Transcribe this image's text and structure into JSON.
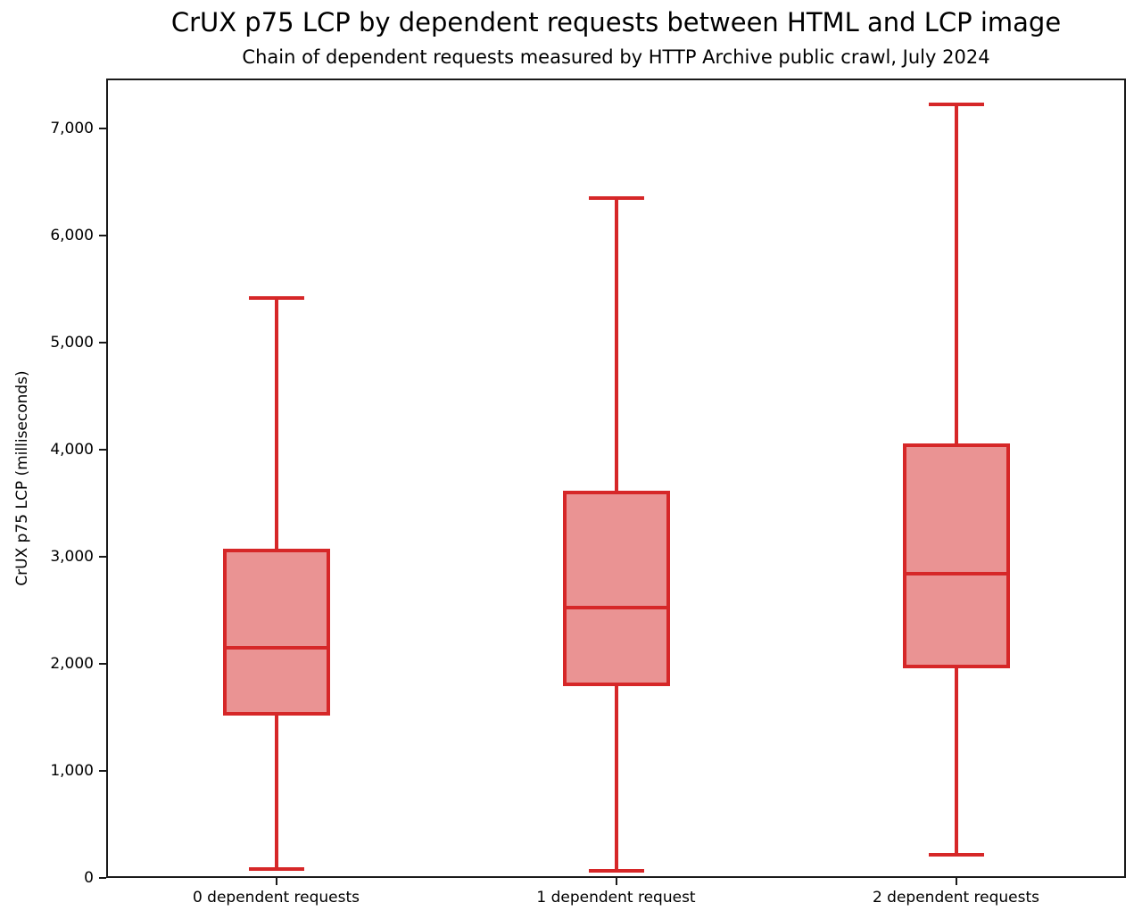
{
  "page": {
    "title": "CrUX p75 LCP by dependent requests between HTML and LCP image",
    "subtitle": "Chain of dependent requests measured by HTTP Archive public crawl, July 2024"
  },
  "chart_data": {
    "type": "boxplot",
    "title": "CrUX p75 LCP by dependent requests between HTML and LCP image",
    "subtitle": "Chain of dependent requests measured by HTTP Archive public crawl, July 2024",
    "xlabel": "",
    "ylabel": "CrUX p75 LCP (milliseconds)",
    "categories": [
      "0 dependent requests",
      "1 dependent request",
      "2 dependent requests"
    ],
    "series": [
      {
        "category": "0 dependent requests",
        "min": 80,
        "q1": 1520,
        "median": 2150,
        "q3": 3080,
        "max": 5420
      },
      {
        "category": "1 dependent request",
        "min": 70,
        "q1": 1790,
        "median": 2530,
        "q3": 3620,
        "max": 6350
      },
      {
        "category": "2 dependent requests",
        "min": 220,
        "q1": 1960,
        "median": 2840,
        "q3": 4060,
        "max": 7230
      }
    ],
    "unit": "milliseconds",
    "ylim": [
      0,
      7470
    ],
    "yticks": [
      0,
      1000,
      2000,
      3000,
      4000,
      5000,
      6000,
      7000
    ],
    "ytick_labels": [
      "0",
      "1,000",
      "2,000",
      "3,000",
      "4,000",
      "5,000",
      "6,000",
      "7,000"
    ],
    "grid": false,
    "legend": null,
    "colors": {
      "box_fill": "#ea9393",
      "box_edge": "#d62728",
      "axis": "#1a1a1a",
      "text": "#000000"
    }
  }
}
